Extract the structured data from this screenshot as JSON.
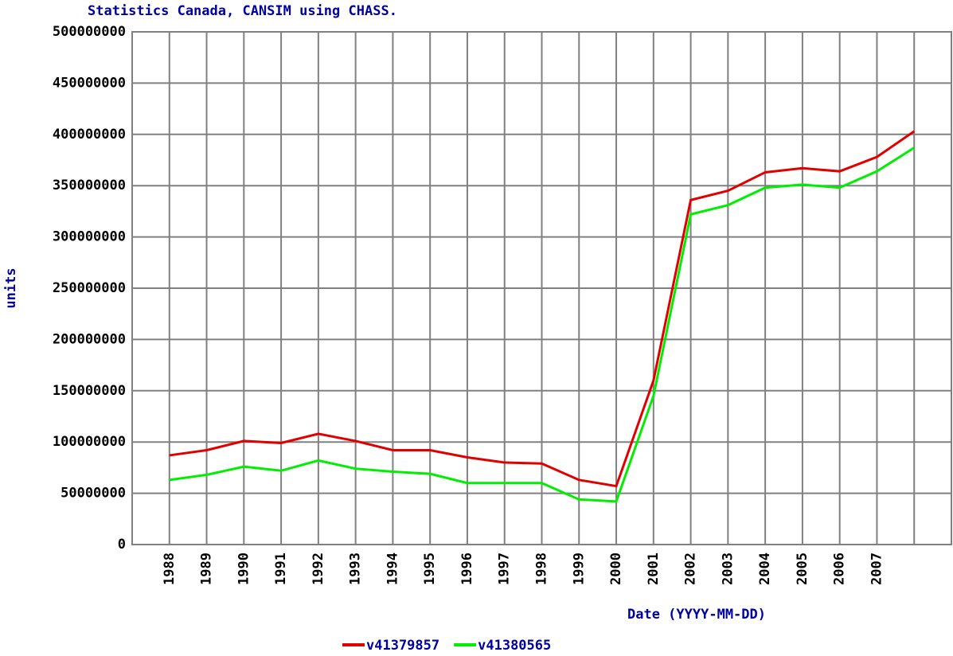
{
  "chart_data": {
    "type": "line",
    "title": "Statistics Canada, CANSIM using CHASS.",
    "y_label": "units",
    "x_label": "Date (YYYY-MM-DD)",
    "x": [
      1988,
      1989,
      1990,
      1991,
      1992,
      1993,
      1994,
      1995,
      1996,
      1997,
      1998,
      1999,
      2000,
      2001,
      2002,
      2003,
      2004,
      2005,
      2006,
      2007,
      2008
    ],
    "series": [
      {
        "name": "v41379857",
        "color": "#e00000",
        "values": [
          87000000,
          92000000,
          101000000,
          99000000,
          108000000,
          101000000,
          92000000,
          92000000,
          85000000,
          80000000,
          79000000,
          63000000,
          57000000,
          160000000,
          336000000,
          345000000,
          363000000,
          367000000,
          364000000,
          378000000,
          403000000
        ]
      },
      {
        "name": "v41380565",
        "color": "#00ee00",
        "values": [
          63000000,
          68000000,
          76000000,
          72000000,
          82000000,
          74000000,
          71000000,
          69000000,
          60000000,
          60000000,
          60000000,
          44000000,
          42000000,
          145000000,
          322000000,
          331000000,
          348000000,
          351000000,
          348000000,
          364000000,
          387000000
        ]
      }
    ],
    "xlim": [
      1987,
      2009
    ],
    "xticks": [
      1988,
      1989,
      1990,
      1991,
      1992,
      1993,
      1994,
      1995,
      1996,
      1997,
      1998,
      1999,
      2000,
      2001,
      2002,
      2003,
      2004,
      2005,
      2006,
      2007,
      {
        "value": 2008,
        "label": null
      }
    ],
    "ylim": [
      0,
      500000000
    ],
    "yticks": [
      0,
      50000000,
      100000000,
      150000000,
      200000000,
      250000000,
      300000000,
      350000000,
      400000000,
      450000000,
      500000000
    ],
    "grid": true,
    "legend": "bottom"
  }
}
